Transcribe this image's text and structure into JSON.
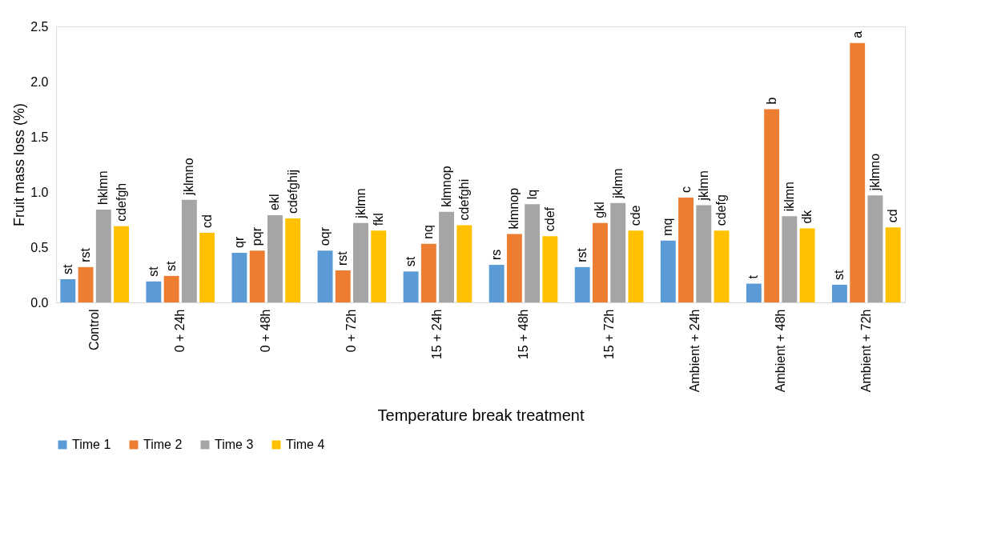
{
  "chart_data": {
    "type": "bar",
    "xlabel": "Temperature break treatment",
    "ylabel": "Fruit mass loss (%)",
    "categories": [
      "Control",
      "0 + 24h",
      "0 + 48h",
      "0 + 72h",
      "15 + 24h",
      "15 + 48h",
      "15 + 72h",
      "Ambient + 24h",
      "Ambient + 48h",
      "Ambient + 72h"
    ],
    "series": [
      {
        "name": "Time 1",
        "color": "#5b9bd5",
        "values": [
          0.21,
          0.19,
          0.45,
          0.47,
          0.28,
          0.34,
          0.32,
          0.56,
          0.17,
          0.16
        ],
        "value_labels": [
          "st",
          "st",
          "qr",
          "oqr",
          "st",
          "rs",
          "rst",
          "mq",
          "t",
          "st"
        ]
      },
      {
        "name": "Time 2",
        "color": "#ed7d31",
        "values": [
          0.32,
          0.24,
          0.47,
          0.29,
          0.53,
          0.62,
          0.72,
          0.95,
          1.75,
          2.35
        ],
        "value_labels": [
          "rst",
          "st",
          "pqr",
          "rst",
          "nq",
          "klmnop",
          "gkl",
          "c",
          "b",
          "a"
        ]
      },
      {
        "name": "Time 3",
        "color": "#a5a5a5",
        "values": [
          0.84,
          0.93,
          0.79,
          0.72,
          0.82,
          0.89,
          0.9,
          0.88,
          0.78,
          0.97
        ],
        "value_labels": [
          "hklmn",
          "jklmno",
          "ekl",
          "jklmn",
          "klmnop",
          "lq",
          "jklmn",
          "jklmn",
          "iklmn",
          "jklmno"
        ]
      },
      {
        "name": "Time 4",
        "color": "#ffc000",
        "values": [
          0.69,
          0.63,
          0.76,
          0.65,
          0.7,
          0.6,
          0.65,
          0.65,
          0.67,
          0.68
        ],
        "value_labels": [
          "cdefgh",
          "cd",
          "cdefghij",
          "fkl",
          "cdefghi",
          "cdef",
          "cde",
          "cdefg",
          "dk",
          "cd"
        ]
      }
    ],
    "ylim": [
      0,
      2.5
    ],
    "yticks": [
      {
        "value": 0,
        "label": "0.0"
      },
      {
        "value": 0.5,
        "label": "0.5"
      },
      {
        "value": 1,
        "label": "1.0"
      },
      {
        "value": 1.5,
        "label": "1.5"
      },
      {
        "value": 2,
        "label": "2.0"
      },
      {
        "value": 2.5,
        "label": "2.5"
      }
    ],
    "grid": false,
    "legend": "bottom"
  }
}
